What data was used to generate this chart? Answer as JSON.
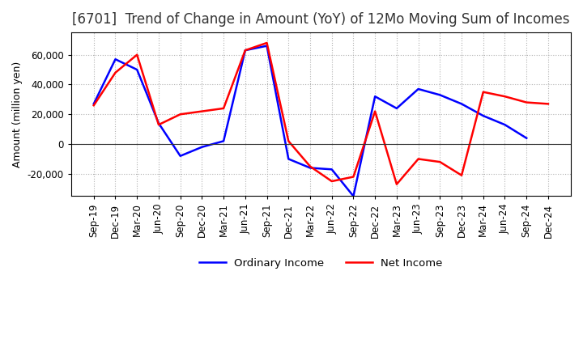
{
  "title": "[6701]  Trend of Change in Amount (YoY) of 12Mo Moving Sum of Incomes",
  "ylabel": "Amount (million yen)",
  "x_labels": [
    "Sep-19",
    "Dec-19",
    "Mar-20",
    "Jun-20",
    "Sep-20",
    "Dec-20",
    "Mar-21",
    "Jun-21",
    "Sep-21",
    "Dec-21",
    "Mar-22",
    "Jun-22",
    "Sep-22",
    "Dec-22",
    "Mar-23",
    "Jun-23",
    "Sep-23",
    "Dec-23",
    "Mar-24",
    "Jun-24",
    "Sep-24",
    "Dec-24"
  ],
  "ordinary_income": [
    27000,
    57000,
    50000,
    14000,
    -8000,
    -2000,
    2000,
    63000,
    66000,
    -10000,
    -16000,
    -17000,
    -35000,
    32000,
    24000,
    37000,
    33000,
    27000,
    19000,
    13000,
    4000,
    null
  ],
  "net_income": [
    26000,
    48000,
    60000,
    13000,
    20000,
    22000,
    24000,
    63000,
    68000,
    2000,
    -15000,
    -25000,
    -22000,
    22000,
    -27000,
    -10000,
    -12000,
    -21000,
    35000,
    32000,
    28000,
    27000
  ],
  "ordinary_color": "#0000ff",
  "net_color": "#ff0000",
  "ylim": [
    -35000,
    75000
  ],
  "yticks": [
    -20000,
    0,
    20000,
    40000,
    60000
  ],
  "background_color": "#ffffff",
  "grid_color": "#aaaaaa",
  "legend_labels": [
    "Ordinary Income",
    "Net Income"
  ],
  "title_fontsize": 12,
  "axis_fontsize": 9,
  "tick_fontsize": 8.5
}
